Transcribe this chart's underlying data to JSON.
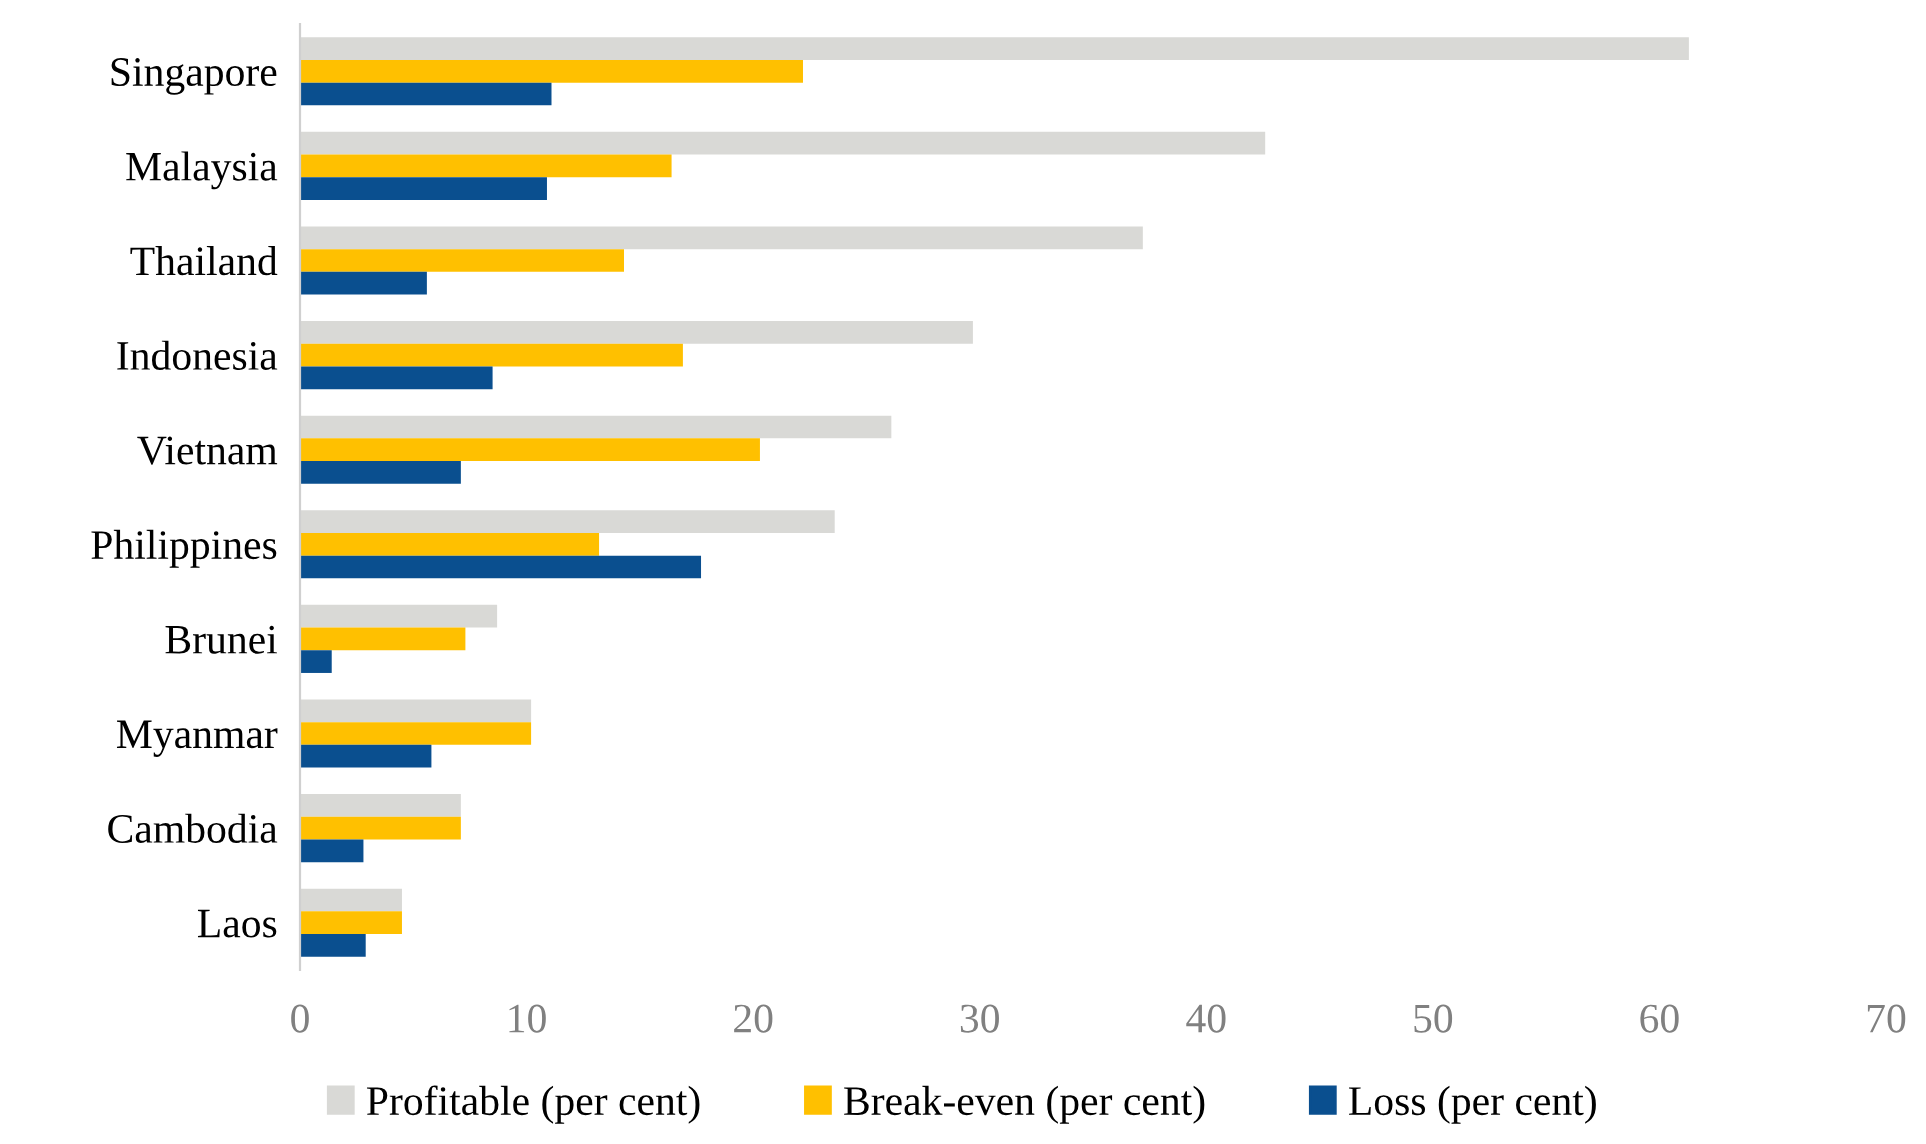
{
  "chart_data": {
    "type": "bar",
    "orientation": "horizontal",
    "categories": [
      "Singapore",
      "Malaysia",
      "Thailand",
      "Indonesia",
      "Vietnam",
      "Philippines",
      "Brunei",
      "Myanmar",
      "Cambodia",
      "Laos"
    ],
    "series": [
      {
        "name": "Profitable (per cent)",
        "color": "#d9d9d6",
        "values": [
          61.3,
          42.6,
          37.2,
          29.7,
          26.1,
          23.6,
          8.7,
          10.2,
          7.1,
          4.5
        ]
      },
      {
        "name": "Break-even (per cent)",
        "color": "#ffc000",
        "values": [
          22.2,
          16.4,
          14.3,
          16.9,
          20.3,
          13.2,
          7.3,
          10.2,
          7.1,
          4.5
        ]
      },
      {
        "name": "Loss (per cent)",
        "color": "#0a4f8f",
        "values": [
          11.1,
          10.9,
          5.6,
          8.5,
          7.1,
          17.7,
          1.4,
          5.8,
          2.8,
          2.9
        ]
      }
    ],
    "xlim": [
      0,
      70
    ],
    "xticks": [
      0,
      10,
      20,
      30,
      40,
      50,
      60,
      70
    ],
    "grid": false,
    "legend": "bottom"
  }
}
